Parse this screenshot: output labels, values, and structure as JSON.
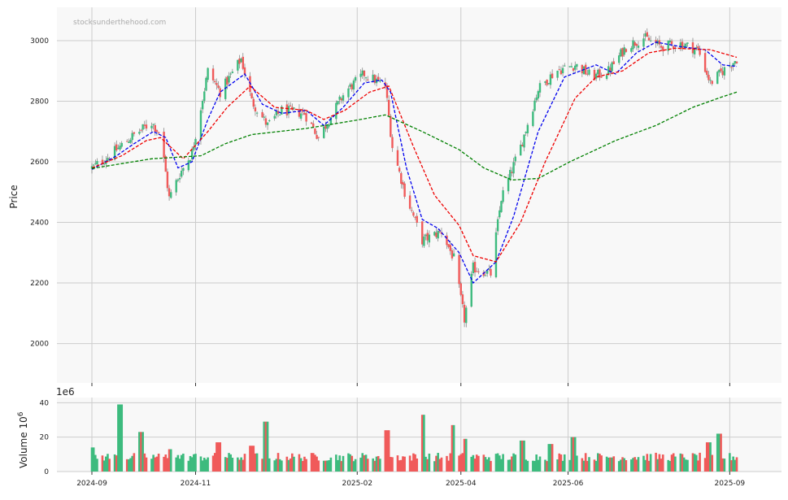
{
  "watermark": "stocksunderthehood.com",
  "colors": {
    "up": "#3dbb7e",
    "down": "#f05a5a",
    "ma_short": "#0000ee",
    "ma_mid": "#ee0000",
    "ma_long": "#008000",
    "panel_bg": "#f8f8f8",
    "grid": "#cccccc"
  },
  "chart_data": [
    {
      "type": "candlestick",
      "ylabel": "Price",
      "ylim": [
        1870,
        3110
      ],
      "y_ticks": [
        "2000",
        "2200",
        "2400",
        "2600",
        "2800",
        "3000"
      ],
      "x_ticks": [
        "2024-09",
        "2024-11",
        "2025-02",
        "2025-04",
        "2025-06",
        "2025-09"
      ],
      "grid": true,
      "price_path": [
        [
          "2024-09-03",
          2580
        ],
        [
          "2024-09-13",
          2620
        ],
        [
          "2024-09-25",
          2680
        ],
        [
          "2024-10-07",
          2730
        ],
        [
          "2024-10-12",
          2690
        ],
        [
          "2024-10-17",
          2480
        ],
        [
          "2024-10-23",
          2560
        ],
        [
          "2024-10-30",
          2630
        ],
        [
          "2024-11-08",
          2900
        ],
        [
          "2024-11-15",
          2830
        ],
        [
          "2024-11-27",
          2940
        ],
        [
          "2024-12-03",
          2800
        ],
        [
          "2024-12-12",
          2720
        ],
        [
          "2024-12-20",
          2770
        ],
        [
          "2025-01-02",
          2760
        ],
        [
          "2025-01-10",
          2680
        ],
        [
          "2025-01-16",
          2740
        ],
        [
          "2025-01-25",
          2830
        ],
        [
          "2025-02-05",
          2890
        ],
        [
          "2025-02-17",
          2850
        ],
        [
          "2025-02-21",
          2650
        ],
        [
          "2025-02-28",
          2500
        ],
        [
          "2025-03-05",
          2420
        ],
        [
          "2025-03-10",
          2340
        ],
        [
          "2025-03-21",
          2370
        ],
        [
          "2025-03-28",
          2280
        ],
        [
          "2025-04-03",
          2080
        ],
        [
          "2025-04-08",
          2250
        ],
        [
          "2025-04-18",
          2230
        ],
        [
          "2025-04-24",
          2480
        ],
        [
          "2025-05-05",
          2650
        ],
        [
          "2025-05-15",
          2840
        ],
        [
          "2025-05-25",
          2900
        ],
        [
          "2025-06-05",
          2920
        ],
        [
          "2025-06-15",
          2880
        ],
        [
          "2025-06-24",
          2900
        ],
        [
          "2025-07-04",
          2980
        ],
        [
          "2025-07-14",
          3010
        ],
        [
          "2025-07-24",
          2980
        ],
        [
          "2025-08-04",
          2990
        ],
        [
          "2025-08-14",
          2970
        ],
        [
          "2025-08-21",
          2860
        ],
        [
          "2025-08-28",
          2900
        ],
        [
          "2025-09-05",
          2940
        ]
      ],
      "series": [
        {
          "style": "dashed",
          "color": "#0000ee",
          "points": [
            [
              "2024-09-03",
              2575
            ],
            [
              "2024-09-17",
              2620
            ],
            [
              "2024-09-27",
              2660
            ],
            [
              "2024-10-08",
              2700
            ],
            [
              "2024-10-15",
              2680
            ],
            [
              "2024-10-22",
              2580
            ],
            [
              "2024-10-30",
              2600
            ],
            [
              "2024-11-08",
              2740
            ],
            [
              "2024-11-15",
              2830
            ],
            [
              "2024-11-29",
              2890
            ],
            [
              "2024-12-09",
              2790
            ],
            [
              "2024-12-20",
              2760
            ],
            [
              "2025-01-03",
              2770
            ],
            [
              "2025-01-13",
              2720
            ],
            [
              "2025-01-24",
              2780
            ],
            [
              "2025-02-05",
              2860
            ],
            [
              "2025-02-15",
              2870
            ],
            [
              "2025-02-20",
              2830
            ],
            [
              "2025-03-01",
              2580
            ],
            [
              "2025-03-10",
              2410
            ],
            [
              "2025-03-19",
              2380
            ],
            [
              "2025-03-31",
              2300
            ],
            [
              "2025-04-08",
              2200
            ],
            [
              "2025-04-21",
              2270
            ],
            [
              "2025-05-01",
              2420
            ],
            [
              "2025-05-15",
              2700
            ],
            [
              "2025-05-30",
              2880
            ],
            [
              "2025-06-17",
              2920
            ],
            [
              "2025-06-28",
              2890
            ],
            [
              "2025-07-10",
              2960
            ],
            [
              "2025-07-21",
              2995
            ],
            [
              "2025-08-04",
              2980
            ],
            [
              "2025-08-18",
              2970
            ],
            [
              "2025-08-28",
              2920
            ],
            [
              "2025-09-05",
              2915
            ]
          ]
        },
        {
          "style": "dashed",
          "color": "#ee0000",
          "points": [
            [
              "2024-09-03",
              2580
            ],
            [
              "2024-09-20",
              2620
            ],
            [
              "2024-10-04",
              2670
            ],
            [
              "2024-10-12",
              2680
            ],
            [
              "2024-10-25",
              2610
            ],
            [
              "2024-11-08",
              2700
            ],
            [
              "2024-11-19",
              2780
            ],
            [
              "2024-12-02",
              2850
            ],
            [
              "2024-12-16",
              2780
            ],
            [
              "2025-01-03",
              2770
            ],
            [
              "2025-01-13",
              2740
            ],
            [
              "2025-01-25",
              2770
            ],
            [
              "2025-02-08",
              2830
            ],
            [
              "2025-02-19",
              2850
            ],
            [
              "2025-03-05",
              2650
            ],
            [
              "2025-03-17",
              2490
            ],
            [
              "2025-03-31",
              2390
            ],
            [
              "2025-04-08",
              2290
            ],
            [
              "2025-04-21",
              2270
            ],
            [
              "2025-05-05",
              2400
            ],
            [
              "2025-05-19",
              2600
            ],
            [
              "2025-06-05",
              2810
            ],
            [
              "2025-06-17",
              2880
            ],
            [
              "2025-07-02",
              2900
            ],
            [
              "2025-07-17",
              2960
            ],
            [
              "2025-08-01",
              2975
            ],
            [
              "2025-08-21",
              2970
            ],
            [
              "2025-09-05",
              2945
            ]
          ]
        },
        {
          "style": "dashed",
          "color": "#008000",
          "points": [
            [
              "2024-09-03",
              2578
            ],
            [
              "2024-10-07",
              2610
            ],
            [
              "2024-11-04",
              2620
            ],
            [
              "2024-11-18",
              2660
            ],
            [
              "2024-12-03",
              2690
            ],
            [
              "2025-01-03",
              2710
            ],
            [
              "2025-02-03",
              2740
            ],
            [
              "2025-02-17",
              2755
            ],
            [
              "2025-03-10",
              2700
            ],
            [
              "2025-03-31",
              2640
            ],
            [
              "2025-04-14",
              2580
            ],
            [
              "2025-04-30",
              2540
            ],
            [
              "2025-05-15",
              2545
            ],
            [
              "2025-06-02",
              2600
            ],
            [
              "2025-06-28",
              2670
            ],
            [
              "2025-07-21",
              2720
            ],
            [
              "2025-08-11",
              2780
            ],
            [
              "2025-08-28",
              2815
            ],
            [
              "2025-09-05",
              2830
            ]
          ]
        }
      ]
    },
    {
      "type": "bar",
      "ylabel": "Volume  10^6",
      "offset_text": "1e6",
      "ylim": [
        0,
        43
      ],
      "y_ticks": [
        "0",
        "20",
        "40"
      ],
      "grid": true,
      "volume_baseline": 8,
      "volume_spikes": [
        [
          "2024-09-03",
          14
        ],
        [
          "2024-09-19",
          39
        ],
        [
          "2024-10-01",
          23
        ],
        [
          "2024-10-18",
          13
        ],
        [
          "2024-11-14",
          17
        ],
        [
          "2024-12-11",
          29
        ],
        [
          "2024-12-03",
          15
        ],
        [
          "2025-02-18",
          24
        ],
        [
          "2025-03-10",
          33
        ],
        [
          "2025-03-28",
          27
        ],
        [
          "2025-04-04",
          19
        ],
        [
          "2025-05-06",
          18
        ],
        [
          "2025-05-22",
          16
        ],
        [
          "2025-06-04",
          20
        ],
        [
          "2025-08-26",
          22
        ],
        [
          "2025-08-20",
          17
        ]
      ]
    }
  ]
}
